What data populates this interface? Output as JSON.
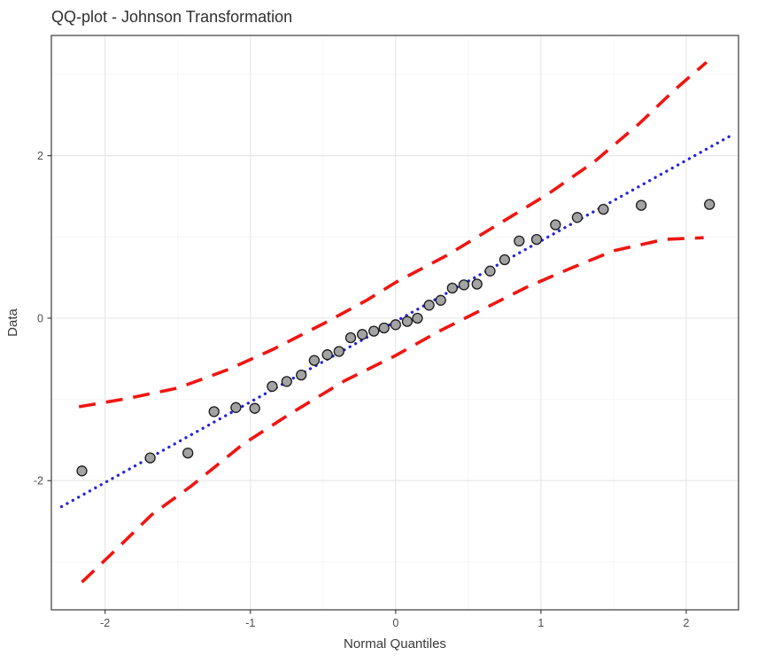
{
  "chart": {
    "title": "QQ-plot - Johnson Transformation",
    "xlabel": "Normal Quantiles",
    "ylabel": "Data"
  },
  "chart_data": {
    "type": "scatter",
    "title": "QQ-plot - Johnson Transformation",
    "xlabel": "Normal Quantiles",
    "ylabel": "Data",
    "x_range": [
      -2.37,
      2.36
    ],
    "y_range": [
      -3.59,
      3.48
    ],
    "x_ticks": [
      -2,
      -1,
      0,
      1,
      2
    ],
    "y_ticks": [
      -2,
      0,
      2
    ],
    "x_minor_gridlines": [
      -1.5,
      -0.5,
      0.5,
      1.5
    ],
    "y_minor_gridlines": [
      -3,
      -1,
      1,
      3
    ],
    "grid": "on",
    "legend": "none",
    "series": [
      {
        "name": "sample-quantile-points",
        "type": "scatter",
        "marker": "circle",
        "fill": "#a3a3a3",
        "stroke": "#1a1a1a",
        "points": [
          [
            -2.16,
            -1.88
          ],
          [
            -1.69,
            -1.72
          ],
          [
            -1.43,
            -1.66
          ],
          [
            -1.25,
            -1.15
          ],
          [
            -1.1,
            -1.1
          ],
          [
            -0.97,
            -1.11
          ],
          [
            -0.85,
            -0.84
          ],
          [
            -0.75,
            -0.78
          ],
          [
            -0.65,
            -0.7
          ],
          [
            -0.56,
            -0.52
          ],
          [
            -0.47,
            -0.45
          ],
          [
            -0.39,
            -0.41
          ],
          [
            -0.31,
            -0.24
          ],
          [
            -0.23,
            -0.2
          ],
          [
            -0.15,
            -0.16
          ],
          [
            -0.08,
            -0.12
          ],
          [
            0.0,
            -0.08
          ],
          [
            0.08,
            -0.04
          ],
          [
            0.15,
            0.0
          ],
          [
            0.23,
            0.16
          ],
          [
            0.31,
            0.22
          ],
          [
            0.39,
            0.37
          ],
          [
            0.47,
            0.41
          ],
          [
            0.56,
            0.42
          ],
          [
            0.65,
            0.58
          ],
          [
            0.75,
            0.72
          ],
          [
            0.85,
            0.95
          ],
          [
            0.97,
            0.97
          ],
          [
            1.1,
            1.15
          ],
          [
            1.25,
            1.24
          ],
          [
            1.43,
            1.34
          ],
          [
            1.69,
            1.39
          ],
          [
            2.16,
            1.4
          ]
        ]
      },
      {
        "name": "qq-reference-line",
        "type": "line",
        "style": "dotted",
        "color": "#2323dc",
        "points": [
          [
            -2.3,
            -2.32
          ],
          [
            2.3,
            2.24
          ]
        ]
      },
      {
        "name": "upper-confidence-band",
        "type": "line",
        "style": "dashed",
        "color": "#f01511",
        "points": [
          [
            -2.18,
            -1.09
          ],
          [
            -1.85,
            -0.99
          ],
          [
            -1.5,
            -0.86
          ],
          [
            -1.15,
            -0.63
          ],
          [
            -0.84,
            -0.38
          ],
          [
            -0.5,
            -0.07
          ],
          [
            -0.2,
            0.22
          ],
          [
            0.0,
            0.44
          ],
          [
            0.35,
            0.77
          ],
          [
            0.72,
            1.17
          ],
          [
            1.05,
            1.53
          ],
          [
            1.37,
            1.93
          ],
          [
            1.68,
            2.4
          ],
          [
            1.92,
            2.81
          ],
          [
            2.14,
            3.15
          ]
        ]
      },
      {
        "name": "lower-confidence-band",
        "type": "line",
        "style": "dashed",
        "color": "#f01511",
        "points": [
          [
            -2.16,
            -3.25
          ],
          [
            -1.92,
            -2.84
          ],
          [
            -1.68,
            -2.42
          ],
          [
            -1.41,
            -2.07
          ],
          [
            -1.05,
            -1.55
          ],
          [
            -0.72,
            -1.17
          ],
          [
            -0.35,
            -0.77
          ],
          [
            0.0,
            -0.46
          ],
          [
            0.3,
            -0.16
          ],
          [
            0.6,
            0.11
          ],
          [
            0.9,
            0.38
          ],
          [
            1.2,
            0.61
          ],
          [
            1.5,
            0.83
          ],
          [
            1.85,
            0.97
          ],
          [
            2.12,
            0.99
          ]
        ]
      }
    ],
    "colors": {
      "point_fill": "#a3a3a3",
      "point_stroke": "#1a1a1a",
      "line_blue": "#2323dc",
      "band_red": "#f01511",
      "grid_major": "#e8e8e8",
      "grid_minor": "#f4f4f4",
      "panel_background": "#ffffff",
      "panel_border": "#555555",
      "tick_mark": "#333333",
      "axis_text": "#4d4d4d",
      "title_text": "#303030"
    }
  }
}
